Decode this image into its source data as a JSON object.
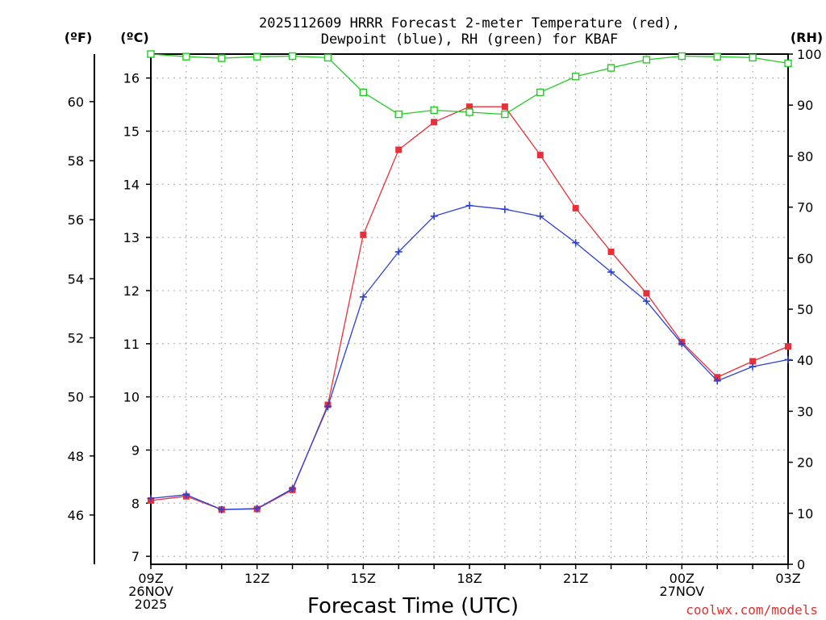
{
  "chart_data": {
    "type": "line",
    "title_line1": "2025112609 HRRR Forecast 2-meter Temperature (red),",
    "title_line2": "Dewpoint (blue), RH (green) for KBAF",
    "xlabel": "Forecast Time (UTC)",
    "left_outer_axis_label": "(ºF)",
    "left_inner_axis_label": "(ºC)",
    "right_axis_label": "(RH)",
    "watermark": "coolwx.com/models",
    "x_hours": [
      0,
      1,
      2,
      3,
      4,
      5,
      6,
      7,
      8,
      9,
      10,
      11,
      12,
      13,
      14,
      15,
      16,
      17,
      18
    ],
    "x_ticks": [
      {
        "hour": 0,
        "lines": [
          "09Z",
          "26NOV",
          "2025"
        ]
      },
      {
        "hour": 3,
        "lines": [
          "12Z"
        ]
      },
      {
        "hour": 6,
        "lines": [
          "15Z"
        ]
      },
      {
        "hour": 9,
        "lines": [
          "18Z"
        ]
      },
      {
        "hour": 12,
        "lines": [
          "21Z"
        ]
      },
      {
        "hour": 15,
        "lines": [
          "00Z",
          "27NOV"
        ]
      },
      {
        "hour": 18,
        "lines": [
          "03Z"
        ]
      }
    ],
    "celsius_range": [
      6.85,
      16.45
    ],
    "celsius_ticks": [
      7,
      8,
      9,
      10,
      11,
      12,
      13,
      14,
      15,
      16
    ],
    "fahrenheit_ticks": [
      46,
      48,
      50,
      52,
      54,
      56,
      58,
      60
    ],
    "rh_range": [
      0,
      100
    ],
    "rh_ticks": [
      0,
      10,
      20,
      30,
      40,
      50,
      60,
      70,
      80,
      90,
      100
    ],
    "grid": true,
    "series": [
      {
        "name": "Temperature",
        "unit": "C",
        "color": "#e8303a",
        "marker": "filled-square",
        "values": [
          8.05,
          8.13,
          7.88,
          7.89,
          8.25,
          9.85,
          13.05,
          14.65,
          15.17,
          15.46,
          15.46,
          14.55,
          13.55,
          12.73,
          11.95,
          11.03,
          10.37,
          10.67,
          10.95
        ]
      },
      {
        "name": "Dewpoint",
        "unit": "C",
        "color": "#2b3fd8",
        "marker": "plus",
        "values": [
          8.09,
          8.16,
          7.88,
          7.9,
          8.27,
          9.82,
          11.88,
          12.73,
          13.4,
          13.6,
          13.53,
          13.4,
          12.9,
          12.35,
          11.8,
          11.0,
          10.3,
          10.57,
          10.7
        ]
      },
      {
        "name": "RH",
        "unit": "%",
        "color": "#22cc22",
        "marker": "open-square",
        "values": [
          100,
          99.5,
          99.2,
          99.5,
          99.6,
          99.3,
          92.5,
          88.2,
          89.0,
          88.6,
          88.2,
          92.5,
          95.6,
          97.3,
          98.9,
          99.6,
          99.5,
          99.3,
          98.2
        ]
      }
    ]
  }
}
